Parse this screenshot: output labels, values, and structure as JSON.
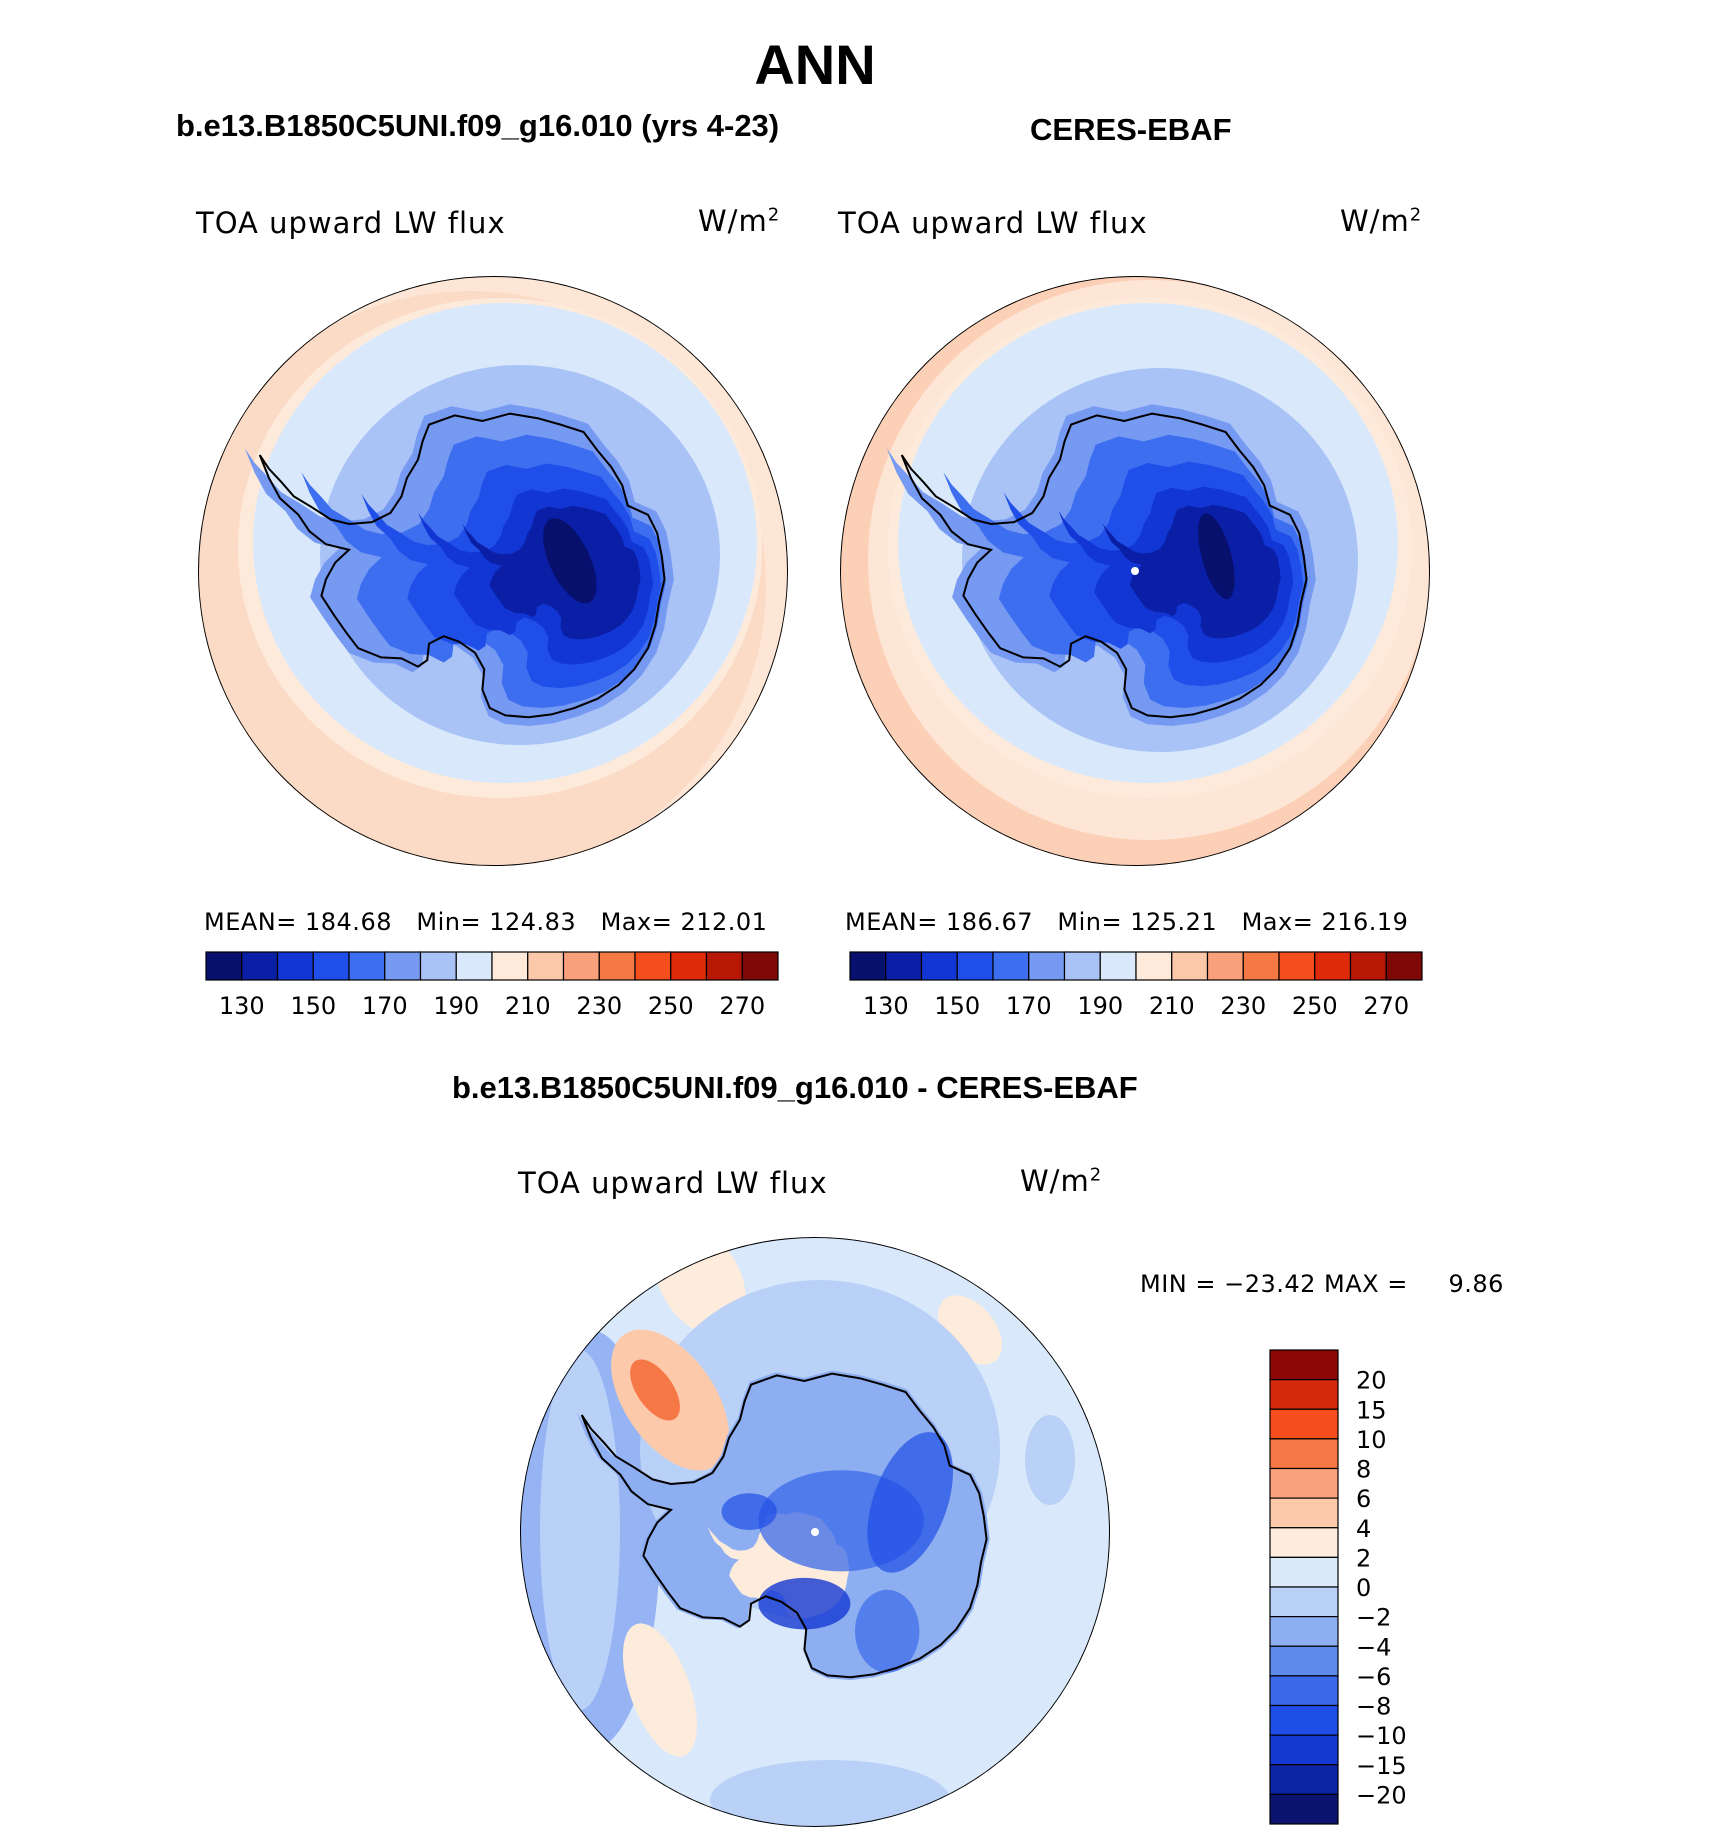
{
  "season": "ANN",
  "panels": [
    {
      "case_title": "b.e13.B1850C5UNI.f09_g16.010 (yrs 4-23)",
      "variable": "TOA upward LW flux",
      "units": "W/m",
      "units_exp": "2",
      "stats": {
        "mean_label": "MEAN=",
        "mean": "184.68",
        "min_label": "Min=",
        "min": "124.83",
        "max_label": "Max=",
        "max": "212.01"
      }
    },
    {
      "case_title": "CERES-EBAF",
      "variable": "TOA upward LW flux",
      "units": "W/m",
      "units_exp": "2",
      "stats": {
        "mean_label": "MEAN=",
        "mean": "186.67",
        "min_label": "Min=",
        "min": "125.21",
        "max_label": "Max=",
        "max": "216.19"
      }
    }
  ],
  "difference": {
    "title": "b.e13.B1850C5UNI.f09_g16.010 - CERES-EBAF",
    "variable": "TOA upward LW flux",
    "units": "W/m",
    "units_exp": "2",
    "minmax_text": "MIN = −23.42 MAX =     9.86"
  },
  "colorbar_main": {
    "colors": [
      "#08106e",
      "#0a1fa6",
      "#1236d4",
      "#1f4fe8",
      "#3d6ef0",
      "#7699f2",
      "#a9c3f7",
      "#d9e9fb",
      "#fdeadb",
      "#fcc8aa",
      "#f9a07a",
      "#f67845",
      "#f44e1c",
      "#df2a0a",
      "#b71806",
      "#7d0806"
    ],
    "ticks": [
      "130",
      "150",
      "170",
      "190",
      "210",
      "230",
      "250",
      "270"
    ]
  },
  "colorbar_diff": {
    "colors": [
      "#0a1470",
      "#0c24a6",
      "#1438d2",
      "#1f4ee6",
      "#3a6ae8",
      "#5f8aec",
      "#8eaef2",
      "#b9d0f7",
      "#daeafb",
      "#fdebdc",
      "#fcc9ab",
      "#f9a27c",
      "#f67846",
      "#f44e1c",
      "#d22a0a",
      "#8b0806"
    ],
    "labels": [
      "20",
      "15",
      "10",
      "8",
      "6",
      "4",
      "2",
      "0",
      "−2",
      "−4",
      "−6",
      "−8",
      "−10",
      "−15",
      "−20"
    ]
  }
}
